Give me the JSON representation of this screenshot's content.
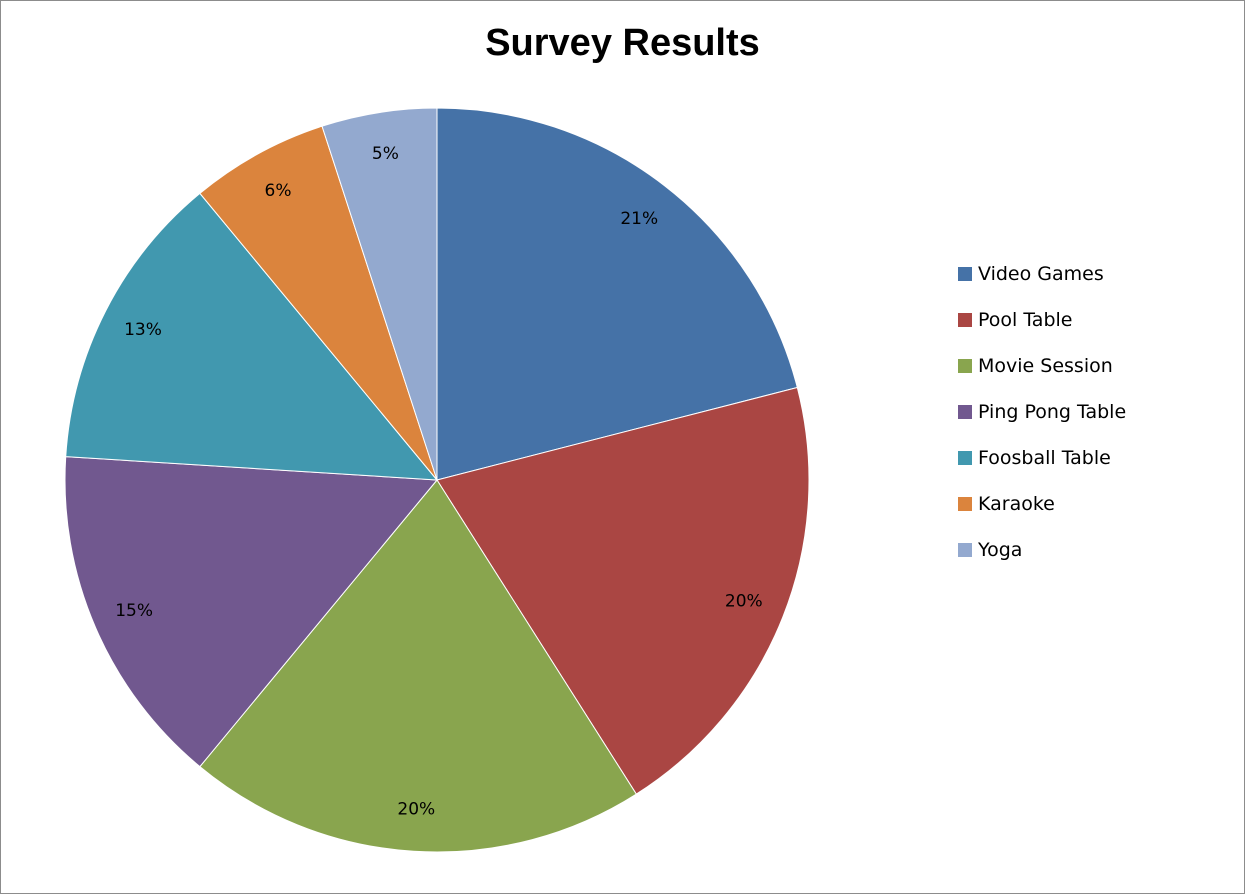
{
  "chart_data": {
    "type": "pie",
    "title": "Survey Results",
    "categories": [
      "Video Games",
      "Pool Table",
      "Movie Session",
      "Ping Pong Table",
      "Foosball Table",
      "Karaoke",
      "Yoga"
    ],
    "values": [
      21,
      20,
      20,
      15,
      13,
      6,
      5
    ],
    "data_labels": [
      "21%",
      "20%",
      "20%",
      "15%",
      "13%",
      "6%",
      "5%"
    ],
    "colors": [
      "#4572A7",
      "#AA4643",
      "#89A54E",
      "#71588F",
      "#4198AF",
      "#DB843D",
      "#93A9CF"
    ],
    "legend": "right",
    "start_angle": "12 o'clock, clockwise"
  }
}
